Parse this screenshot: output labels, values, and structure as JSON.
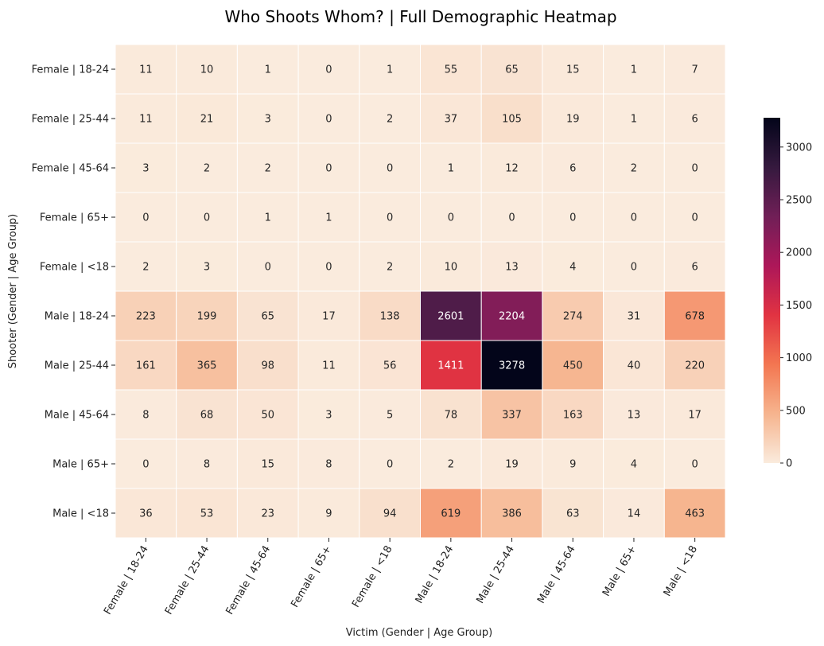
{
  "chart_data": {
    "type": "heatmap",
    "title": "Who Shoots Whom? | Full Demographic Heatmap",
    "xlabel": "Victim (Gender | Age Group)",
    "ylabel": "Shooter (Gender | Age Group)",
    "x_categories": [
      "Female | 18-24",
      "Female | 25-44",
      "Female | 45-64",
      "Female | 65+",
      "Female | <18",
      "Male | 18-24",
      "Male | 25-44",
      "Male | 45-64",
      "Male | 65+",
      "Male | <18"
    ],
    "y_categories": [
      "Female | 18-24",
      "Female | 25-44",
      "Female | 45-64",
      "Female | 65+",
      "Female | <18",
      "Male | 18-24",
      "Male | 25-44",
      "Male | 45-64",
      "Male | 65+",
      "Male | <18"
    ],
    "values": [
      [
        11,
        10,
        1,
        0,
        1,
        55,
        65,
        15,
        1,
        7
      ],
      [
        11,
        21,
        3,
        0,
        2,
        37,
        105,
        19,
        1,
        6
      ],
      [
        3,
        2,
        2,
        0,
        0,
        1,
        12,
        6,
        2,
        0
      ],
      [
        0,
        0,
        1,
        1,
        0,
        0,
        0,
        0,
        0,
        0
      ],
      [
        2,
        3,
        0,
        0,
        2,
        10,
        13,
        4,
        0,
        6
      ],
      [
        223,
        199,
        65,
        17,
        138,
        2601,
        2204,
        274,
        31,
        678
      ],
      [
        161,
        365,
        98,
        11,
        56,
        1411,
        3278,
        450,
        40,
        220
      ],
      [
        8,
        68,
        50,
        3,
        5,
        78,
        337,
        163,
        13,
        17
      ],
      [
        0,
        8,
        15,
        8,
        0,
        2,
        19,
        9,
        4,
        0
      ],
      [
        36,
        53,
        23,
        9,
        94,
        619,
        386,
        63,
        14,
        463
      ]
    ],
    "colorbar": {
      "min": 0,
      "max": 3278,
      "ticks": [
        "0",
        "500",
        "1000",
        "1500",
        "2000",
        "2500",
        "3000"
      ],
      "colors": [
        "#faebdd",
        "#f6b48e",
        "#f37651",
        "#e13342",
        "#ad1759",
        "#701f57",
        "#35193e",
        "#03051a"
      ]
    },
    "grid": true
  }
}
